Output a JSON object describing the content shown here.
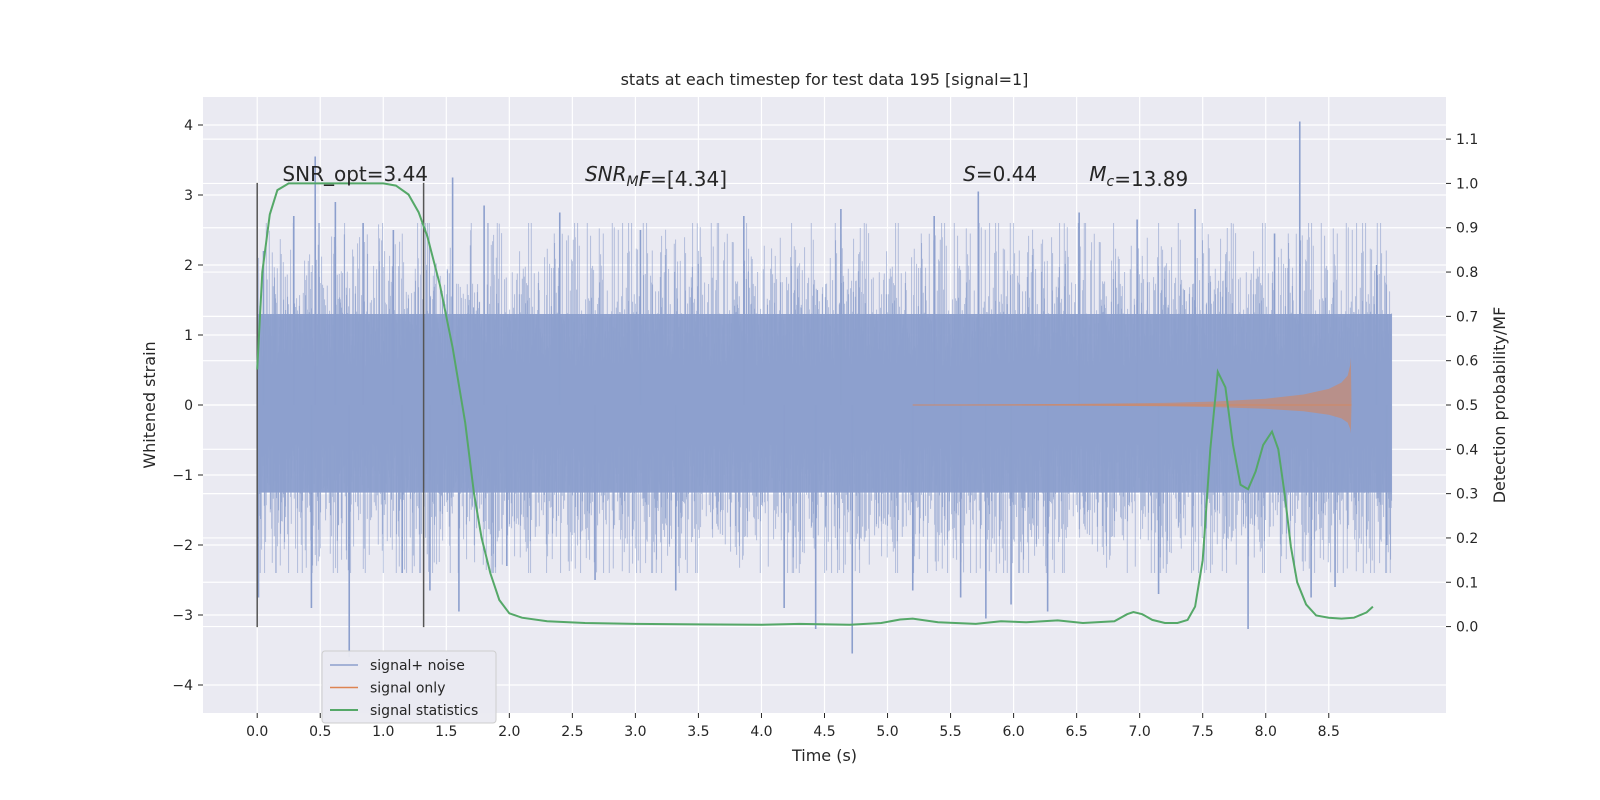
{
  "chart_data": {
    "type": "line",
    "title": "stats at each timestep for test data 195 [signal=1]",
    "xlabel": "Time (s)",
    "ylabel_left": "Whitened strain",
    "ylabel_right": "Detection probability/MF",
    "xlim": [
      -0.43,
      9.43
    ],
    "ylim_left": [
      -4.4,
      4.4
    ],
    "ylim_right": [
      -0.195,
      1.195
    ],
    "x_ticks": [
      0.0,
      0.5,
      1.0,
      1.5,
      2.0,
      2.5,
      3.0,
      3.5,
      4.0,
      4.5,
      5.0,
      5.5,
      6.0,
      6.5,
      7.0,
      7.5,
      8.0,
      8.5
    ],
    "y_ticks_left": [
      -4,
      -3,
      -2,
      -1,
      0,
      1,
      2,
      3,
      4
    ],
    "y_ticks_right": [
      0.0,
      0.1,
      0.2,
      0.3,
      0.4,
      0.5,
      0.6,
      0.7,
      0.8,
      0.9,
      1.0,
      1.1
    ],
    "grid": true,
    "legend_position": "lower-left",
    "colors": {
      "background": "#eaeaf2",
      "noise": "#8c9fcd",
      "signal": "#dd8452",
      "stats": "#55a868",
      "vline": "#555555"
    },
    "vertical_lines_x": [
      0.0,
      1.32
    ],
    "annotations": [
      {
        "x": 0.2,
        "y": 3.2,
        "text": "SNR_opt=3.44"
      },
      {
        "x": 2.6,
        "y": 3.2,
        "parts": [
          {
            "t": "SNR",
            "it": true
          },
          {
            "t": "M",
            "it": true,
            "sub": true
          },
          {
            "t": "F",
            "it": true
          },
          {
            "t": "=[4.34]",
            "it": false
          }
        ]
      },
      {
        "x": 5.6,
        "y": 3.2,
        "parts": [
          {
            "t": "S",
            "it": true
          },
          {
            "t": "=0.44",
            "it": false
          }
        ]
      },
      {
        "x": 6.6,
        "y": 3.2,
        "parts": [
          {
            "t": "M",
            "it": true
          },
          {
            "t": "c",
            "it": true,
            "sub": true
          },
          {
            "t": "=13.89",
            "it": false
          }
        ]
      }
    ],
    "noise": {
      "x_range": [
        0.0,
        9.0
      ],
      "band_std": 0.62,
      "upper_limit": 1.3,
      "lower_limit": -1.25,
      "spikes": [
        {
          "x": 0.01,
          "y": -2.75
        },
        {
          "x": 0.05,
          "y": 2.2
        },
        {
          "x": 0.29,
          "y": 2.7
        },
        {
          "x": 0.46,
          "y": 3.55
        },
        {
          "x": 0.43,
          "y": -2.9
        },
        {
          "x": 0.62,
          "y": 2.9
        },
        {
          "x": 0.73,
          "y": -3.6
        },
        {
          "x": 0.84,
          "y": 2.6
        },
        {
          "x": 1.08,
          "y": 2.5
        },
        {
          "x": 1.15,
          "y": -2.4
        },
        {
          "x": 1.37,
          "y": -2.65
        },
        {
          "x": 1.55,
          "y": 3.25
        },
        {
          "x": 1.6,
          "y": -2.95
        },
        {
          "x": 1.8,
          "y": 2.85
        },
        {
          "x": 1.98,
          "y": -2.3
        },
        {
          "x": 2.4,
          "y": 2.75
        },
        {
          "x": 2.68,
          "y": -2.5
        },
        {
          "x": 3.04,
          "y": 2.5
        },
        {
          "x": 3.32,
          "y": -2.65
        },
        {
          "x": 3.86,
          "y": 2.7
        },
        {
          "x": 4.18,
          "y": -2.9
        },
        {
          "x": 4.43,
          "y": -3.2
        },
        {
          "x": 4.63,
          "y": 2.8
        },
        {
          "x": 4.72,
          "y": -3.55
        },
        {
          "x": 5.2,
          "y": -2.65
        },
        {
          "x": 5.37,
          "y": 2.7
        },
        {
          "x": 5.58,
          "y": -2.75
        },
        {
          "x": 5.72,
          "y": 3.05
        },
        {
          "x": 5.78,
          "y": -3.05
        },
        {
          "x": 5.98,
          "y": -2.85
        },
        {
          "x": 6.27,
          "y": -2.95
        },
        {
          "x": 6.52,
          "y": 2.75
        },
        {
          "x": 6.98,
          "y": 2.65
        },
        {
          "x": 7.15,
          "y": -2.7
        },
        {
          "x": 7.44,
          "y": 2.8
        },
        {
          "x": 7.86,
          "y": -3.2
        },
        {
          "x": 8.07,
          "y": 2.45
        },
        {
          "x": 8.27,
          "y": 4.05
        },
        {
          "x": 8.36,
          "y": -2.75
        },
        {
          "x": 8.55,
          "y": -2.6
        },
        {
          "x": 8.88,
          "y": 2.0
        },
        {
          "x": 8.96,
          "y": -2.0
        }
      ]
    },
    "signal_only": {
      "envelope": [
        [
          5.2,
          0.004
        ],
        [
          6.5,
          0.015
        ],
        [
          7.2,
          0.03
        ],
        [
          7.6,
          0.05
        ],
        [
          8.0,
          0.09
        ],
        [
          8.3,
          0.15
        ],
        [
          8.5,
          0.23
        ],
        [
          8.6,
          0.32
        ],
        [
          8.65,
          0.42
        ],
        [
          8.67,
          0.57
        ],
        [
          8.675,
          0.68
        ],
        [
          8.68,
          0.0
        ]
      ]
    },
    "series": [
      {
        "name": "signal statistics",
        "axis": "right",
        "points": [
          [
            0.0,
            0.58
          ],
          [
            0.04,
            0.8
          ],
          [
            0.1,
            0.93
          ],
          [
            0.16,
            0.985
          ],
          [
            0.25,
            1.0
          ],
          [
            0.5,
            1.0
          ],
          [
            0.8,
            1.0
          ],
          [
            1.0,
            1.0
          ],
          [
            1.1,
            0.995
          ],
          [
            1.2,
            0.975
          ],
          [
            1.28,
            0.935
          ],
          [
            1.35,
            0.88
          ],
          [
            1.45,
            0.77
          ],
          [
            1.55,
            0.63
          ],
          [
            1.65,
            0.46
          ],
          [
            1.72,
            0.3
          ],
          [
            1.78,
            0.2
          ],
          [
            1.85,
            0.12
          ],
          [
            1.92,
            0.06
          ],
          [
            2.0,
            0.03
          ],
          [
            2.1,
            0.02
          ],
          [
            2.3,
            0.012
          ],
          [
            2.6,
            0.008
          ],
          [
            3.0,
            0.006
          ],
          [
            3.5,
            0.005
          ],
          [
            4.0,
            0.004
          ],
          [
            4.3,
            0.006
          ],
          [
            4.7,
            0.004
          ],
          [
            4.95,
            0.008
          ],
          [
            5.1,
            0.016
          ],
          [
            5.2,
            0.018
          ],
          [
            5.4,
            0.01
          ],
          [
            5.7,
            0.006
          ],
          [
            5.9,
            0.012
          ],
          [
            6.1,
            0.01
          ],
          [
            6.35,
            0.014
          ],
          [
            6.55,
            0.008
          ],
          [
            6.8,
            0.012
          ],
          [
            6.9,
            0.028
          ],
          [
            6.95,
            0.033
          ],
          [
            7.02,
            0.028
          ],
          [
            7.1,
            0.015
          ],
          [
            7.2,
            0.008
          ],
          [
            7.3,
            0.008
          ],
          [
            7.38,
            0.015
          ],
          [
            7.44,
            0.045
          ],
          [
            7.5,
            0.15
          ],
          [
            7.56,
            0.4
          ],
          [
            7.62,
            0.575
          ],
          [
            7.68,
            0.54
          ],
          [
            7.74,
            0.41
          ],
          [
            7.8,
            0.32
          ],
          [
            7.86,
            0.31
          ],
          [
            7.92,
            0.35
          ],
          [
            7.98,
            0.41
          ],
          [
            8.05,
            0.44
          ],
          [
            8.1,
            0.4
          ],
          [
            8.15,
            0.3
          ],
          [
            8.2,
            0.18
          ],
          [
            8.25,
            0.1
          ],
          [
            8.32,
            0.05
          ],
          [
            8.4,
            0.025
          ],
          [
            8.5,
            0.02
          ],
          [
            8.6,
            0.018
          ],
          [
            8.7,
            0.02
          ],
          [
            8.8,
            0.032
          ],
          [
            8.85,
            0.045
          ]
        ]
      }
    ],
    "legend": [
      {
        "label": "signal+ noise",
        "kind": "noise"
      },
      {
        "label": "signal only",
        "kind": "signal"
      },
      {
        "label": "signal statistics",
        "kind": "stats"
      }
    ]
  }
}
